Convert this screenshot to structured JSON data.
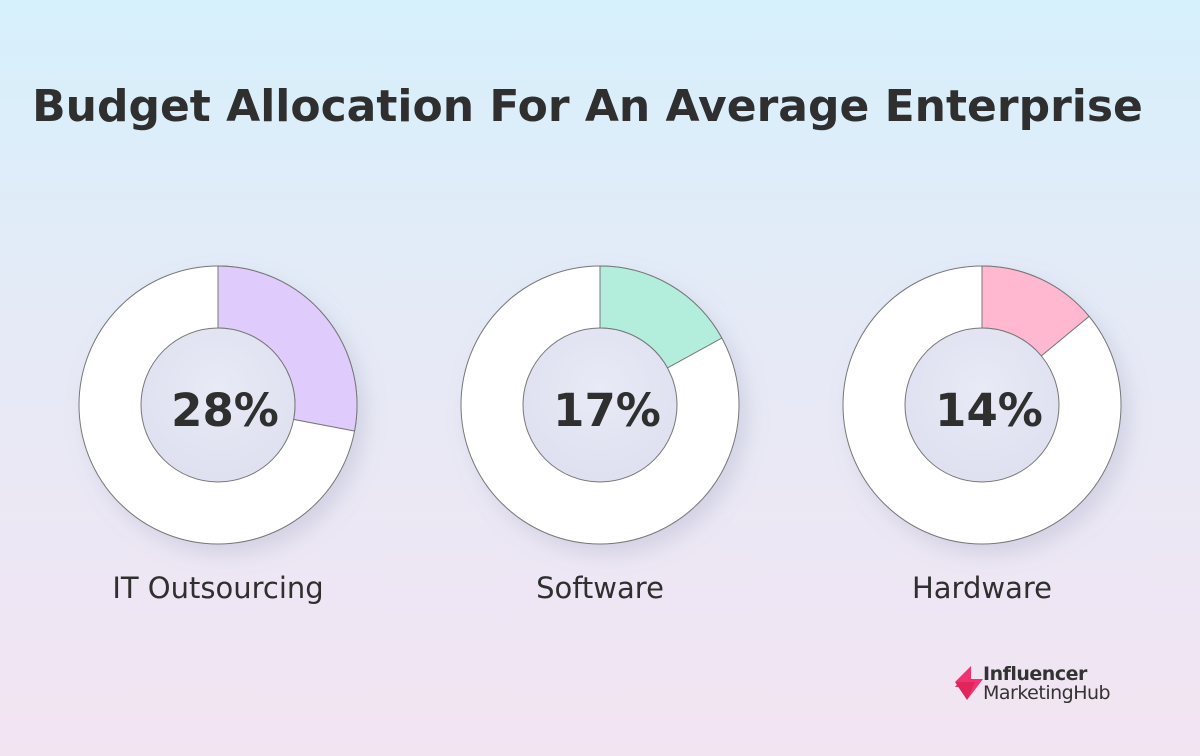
{
  "chart_data": {
    "type": "pie",
    "variant": "donut",
    "title": "Budget Allocation For An Average Enterprise",
    "charts": [
      {
        "label": "IT Outsourcing",
        "value": 28,
        "display": "28%",
        "color": "#e0ccfc"
      },
      {
        "label": "Software",
        "value": 17,
        "display": "17%",
        "color": "#b3eedd"
      },
      {
        "label": "Hardware",
        "value": 14,
        "display": "14%",
        "color": "#ffb8cf"
      }
    ],
    "remainder_color": "#ffffff"
  },
  "branding": {
    "line1": "Influencer",
    "line2": "MarketingHub",
    "color": "#f0336e"
  }
}
